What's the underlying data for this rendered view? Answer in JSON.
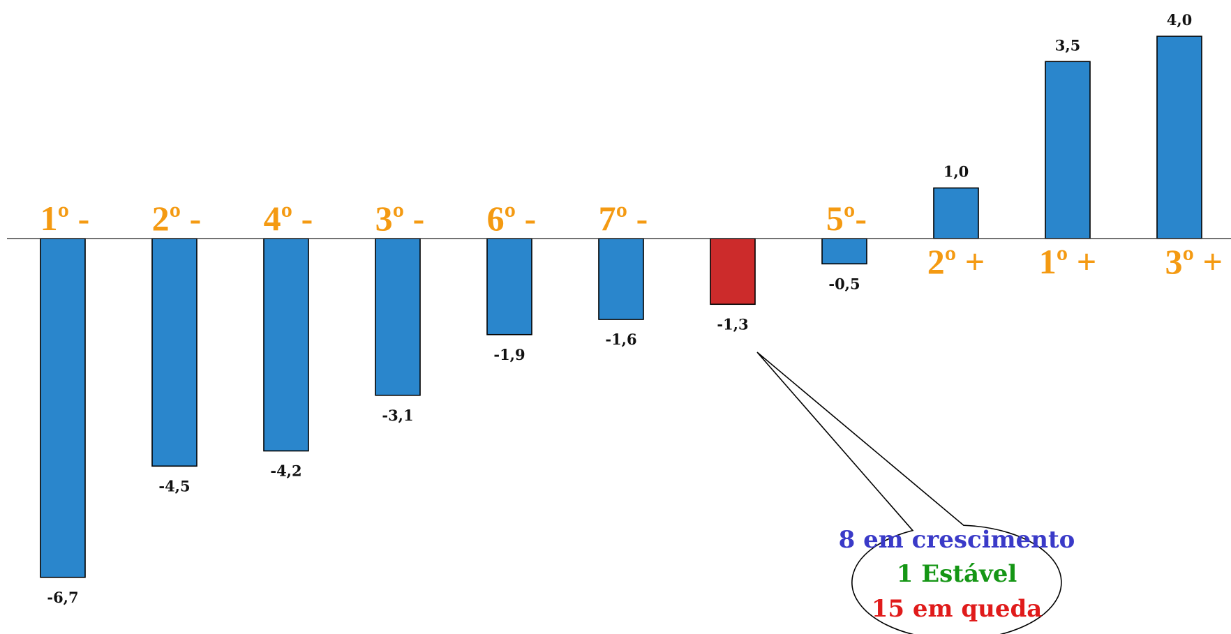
{
  "chart_data": {
    "type": "bar",
    "values": [
      -6.7,
      -4.5,
      -4.2,
      -3.1,
      -1.9,
      -1.6,
      -1.3,
      -0.5,
      1.0,
      3.5,
      4.0
    ],
    "value_labels": [
      "-6,7",
      "-4,5",
      "-4,2",
      "-3,1",
      "-1,9",
      "-1,6",
      "-1,3",
      "-0,5",
      "1,0",
      "3,5",
      "4,0"
    ],
    "rank_labels": [
      "1º -",
      "2º -",
      "4º -",
      "3º -",
      "6º -",
      "7º -",
      "",
      "5º-",
      "2º +",
      "1º +",
      "3º +"
    ],
    "highlight_index": 6,
    "ylim": [
      -7.2,
      4.3
    ],
    "grid": false,
    "legend": null
  },
  "colors": {
    "bar": "#2a86cc",
    "highlight": "#cc2b2b",
    "rank": "#f49a12",
    "axis": "#444444"
  },
  "callout": {
    "lines": [
      {
        "text": "8 em crescimento",
        "color": "#3a3ac8"
      },
      {
        "text": "1 Estável",
        "color": "#159615"
      },
      {
        "text": "15 em queda",
        "color": "#e01b1b"
      }
    ]
  }
}
